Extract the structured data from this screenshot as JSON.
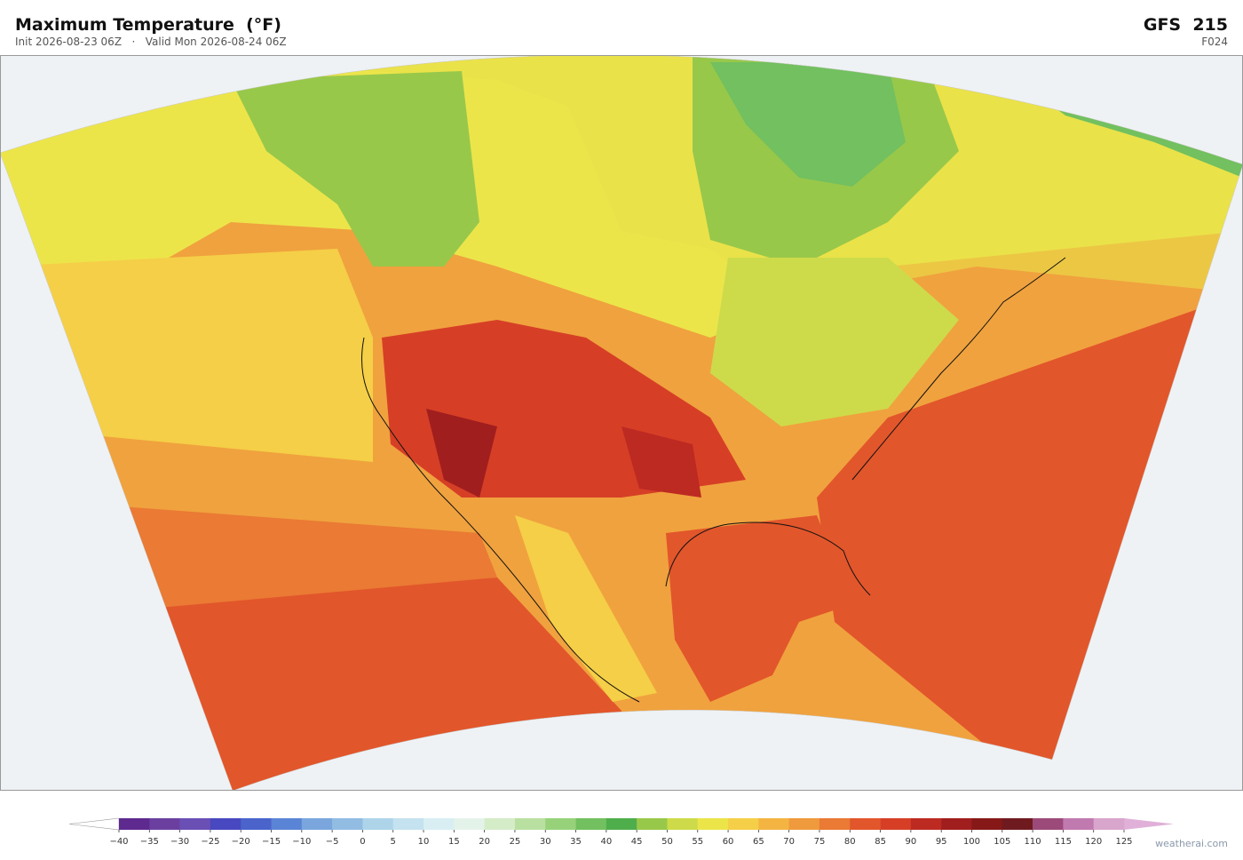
{
  "header": {
    "title": "Maximum Temperature  (°F)",
    "subtitle": "Init 2026-08-23 06Z   ·   Valid Mon 2026-08-24 06Z",
    "model": "GFS  215",
    "forecast_hour": "F024"
  },
  "colorbar": {
    "ticks": [
      {
        "value": -40,
        "label": "−40"
      },
      {
        "value": -35,
        "label": "−35"
      },
      {
        "value": -30,
        "label": "−30"
      },
      {
        "value": -25,
        "label": "−25"
      },
      {
        "value": -20,
        "label": "−20"
      },
      {
        "value": -15,
        "label": "−15"
      },
      {
        "value": -10,
        "label": "−10"
      },
      {
        "value": -5,
        "label": "−5"
      },
      0,
      5,
      10,
      15,
      20,
      25,
      30,
      35,
      40,
      45,
      50,
      55,
      60,
      65,
      70,
      75,
      80,
      85,
      90,
      95,
      100,
      105,
      110,
      115,
      120,
      125
    ],
    "colors": [
      "#5e2a8f",
      "#6b3fa0",
      "#6a4fb5",
      "#4848c0",
      "#4a64cc",
      "#5a84d6",
      "#7aa6dd",
      "#92bce2",
      "#aed4ea",
      "#c4e2ef",
      "#d8eef2",
      "#e4f3ea",
      "#d5ecc8",
      "#b9e0a0",
      "#97d27b",
      "#72c05f",
      "#4fae4c",
      "#98c84a",
      "#cddb4a",
      "#ece54a",
      "#f5cf47",
      "#f4b442",
      "#ef9a3c",
      "#ea7a34",
      "#e2562b",
      "#d63f26",
      "#bd2a22",
      "#a11e1e",
      "#861818",
      "#6f1a1f",
      "#9c4a7a",
      "#c07ab0",
      "#d8a5cc"
    ],
    "under_color": "#ffffff",
    "over_color": "#e0b0d8"
  },
  "footer": {
    "watermark": "weatherai.com"
  }
}
